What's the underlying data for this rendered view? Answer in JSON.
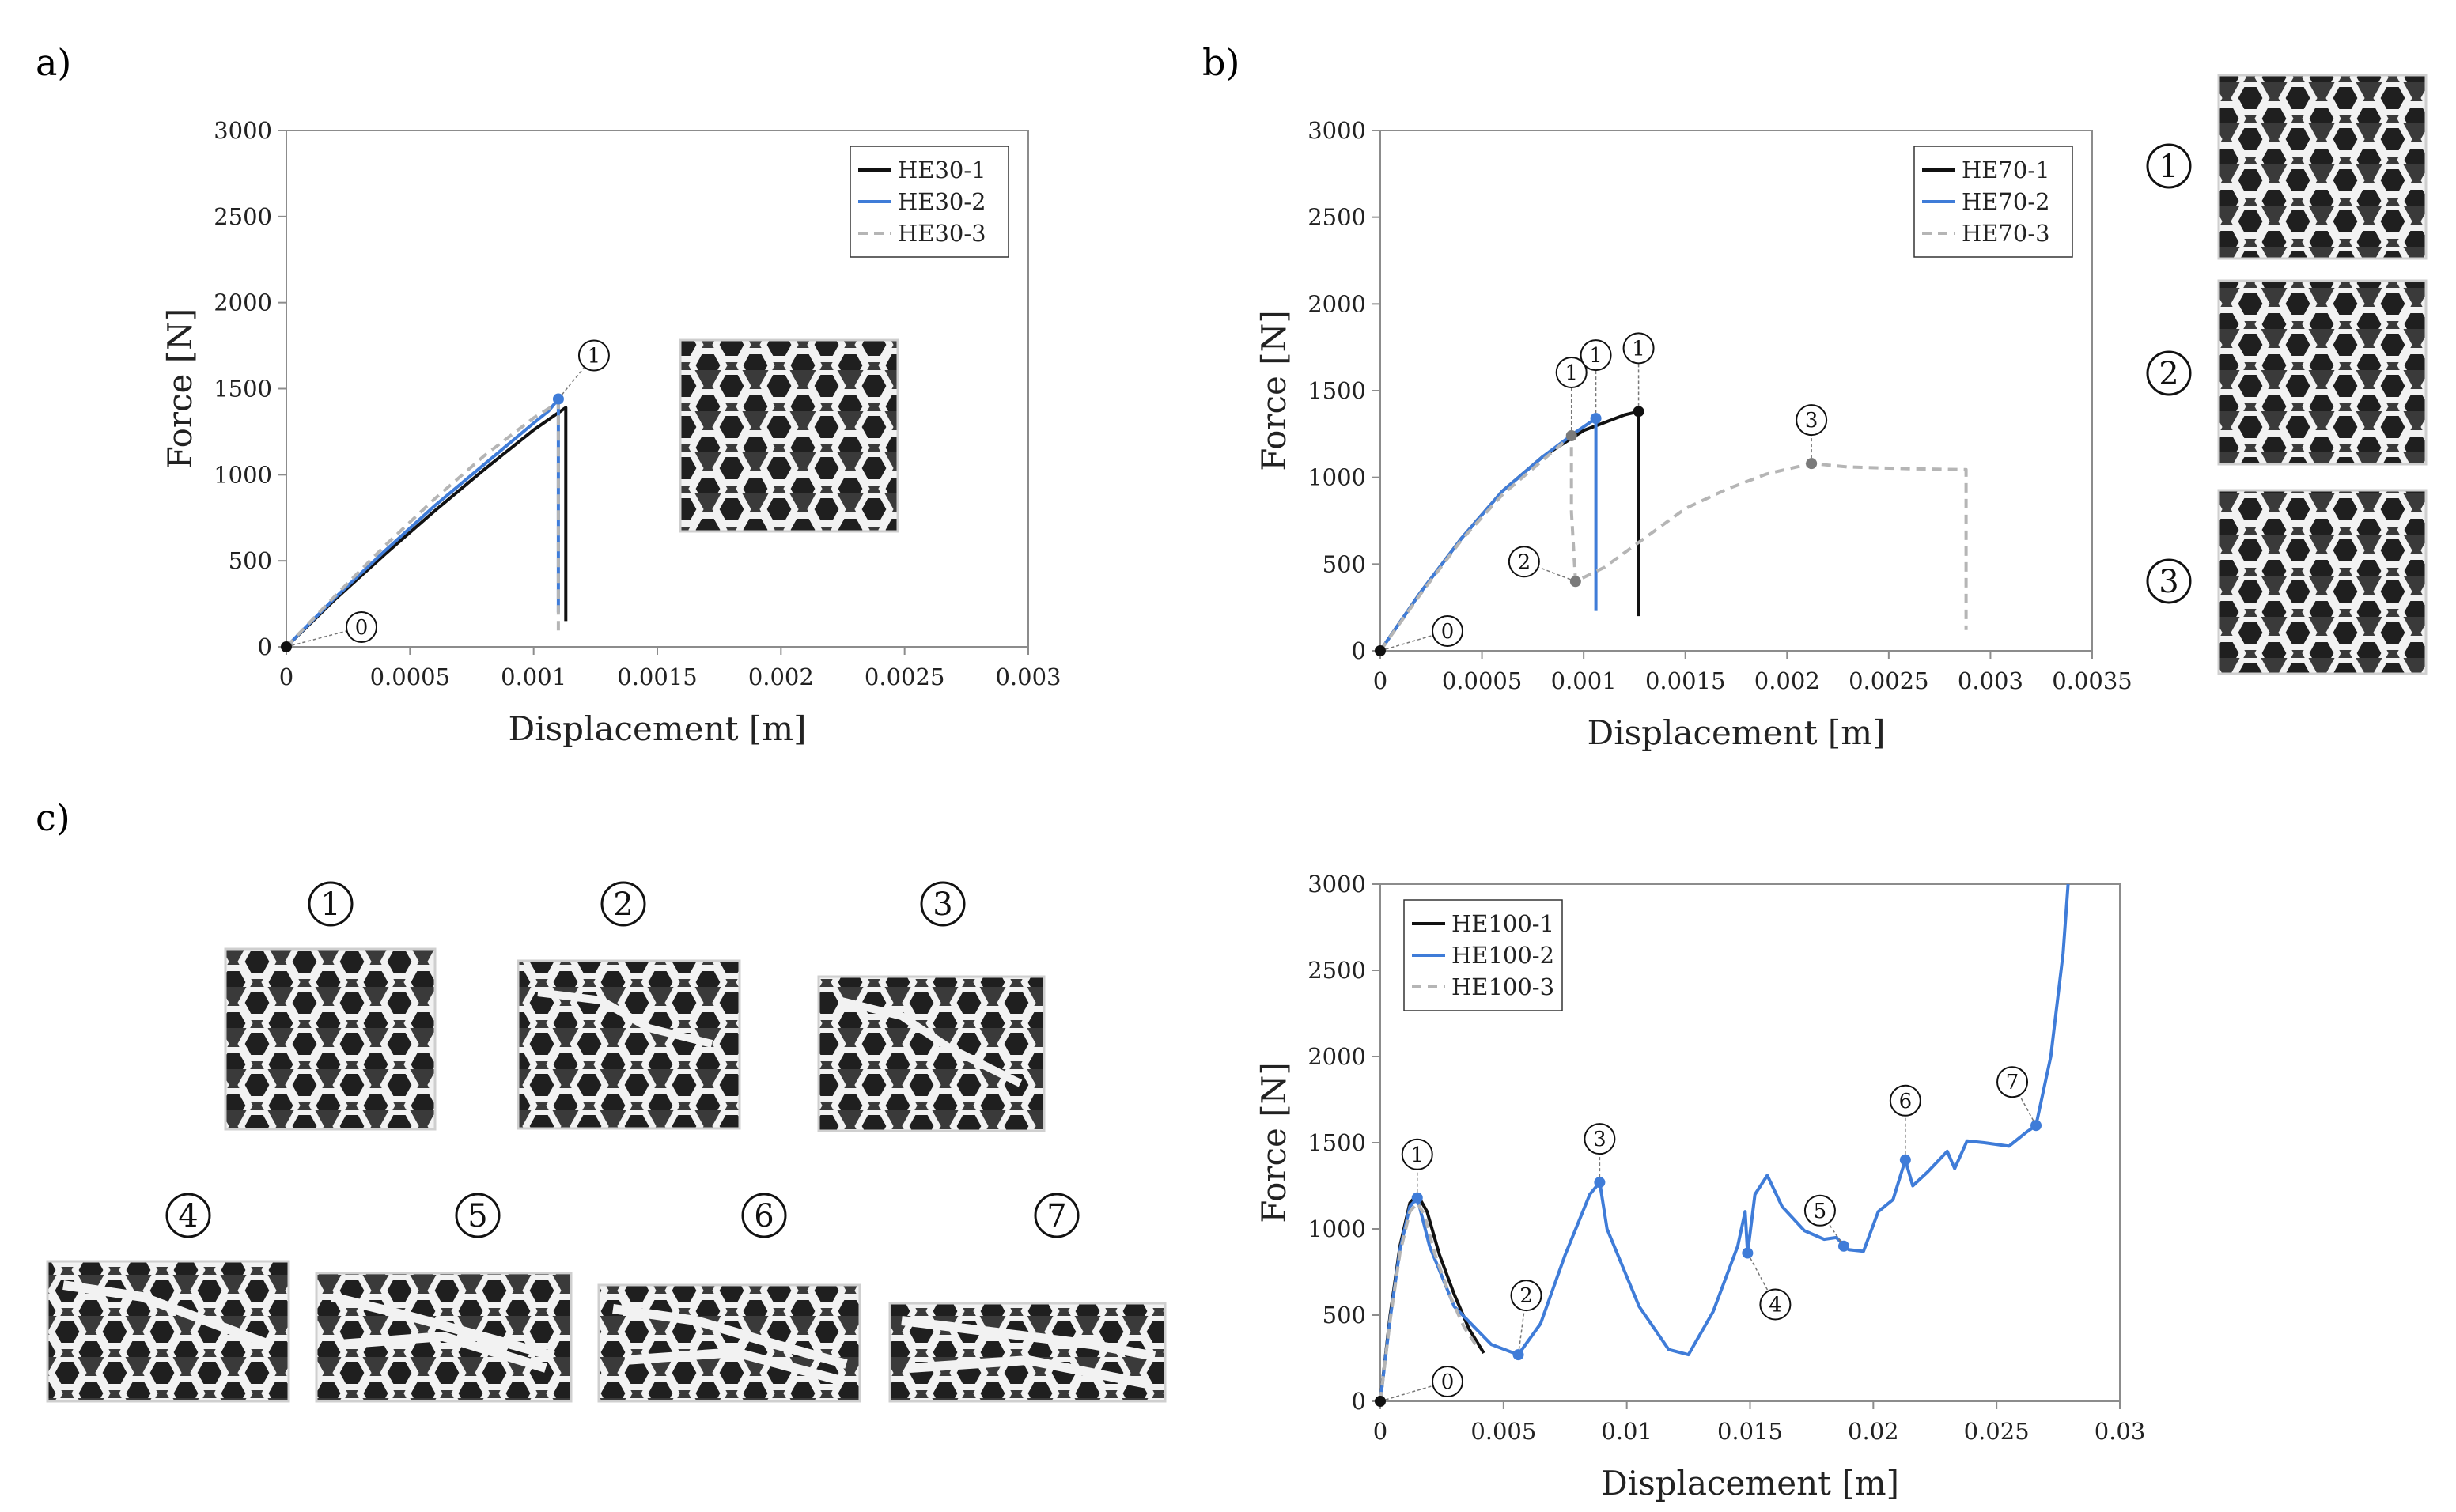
{
  "figure": {
    "panel_labels": [
      "a)",
      "b)",
      "c)"
    ],
    "panel_c_image_markers": [
      "1",
      "2",
      "3",
      "4",
      "5",
      "6",
      "7"
    ],
    "panel_b_image_markers": [
      "1",
      "2",
      "3"
    ]
  },
  "colors": {
    "series_black": "#111111",
    "series_blue": "#3F7CD8",
    "series_grey": "#B5B5B5",
    "marker_grey": "#7a7a7a",
    "photo_bg": "#3a3a3a",
    "lattice_white": "#f2f2f2"
  },
  "chart_data": [
    {
      "id": "a",
      "type": "line",
      "xlabel": "Displacement [m]",
      "ylabel": "Force [N]",
      "xlim": [
        0,
        0.003
      ],
      "ylim": [
        0,
        3000
      ],
      "xticks": [
        0,
        0.0005,
        0.001,
        0.0015,
        0.002,
        0.0025,
        0.003
      ],
      "xtick_labels": [
        "0",
        "0.0005",
        "0.001",
        "0.0015",
        "0.002",
        "0.0025",
        "0.003"
      ],
      "yticks": [
        0,
        500,
        1000,
        1500,
        2000,
        2500,
        3000
      ],
      "ytick_labels": [
        "0",
        "500",
        "1000",
        "1500",
        "2000",
        "2500",
        "3000"
      ],
      "legend_position": "top-right",
      "series": [
        {
          "name": "HE30-1",
          "style": "solid",
          "color": "#111111",
          "points": [
            [
              0,
              0
            ],
            [
              0.0002,
              280
            ],
            [
              0.0004,
              540
            ],
            [
              0.0006,
              790
            ],
            [
              0.0008,
              1030
            ],
            [
              0.001,
              1260
            ],
            [
              0.00113,
              1390
            ],
            [
              0.00113,
              1330
            ],
            [
              0.00113,
              150
            ]
          ]
        },
        {
          "name": "HE30-2",
          "style": "solid",
          "color": "#3F7CD8",
          "points": [
            [
              0,
              0
            ],
            [
              0.0002,
              290
            ],
            [
              0.0004,
              560
            ],
            [
              0.0006,
              820
            ],
            [
              0.0008,
              1060
            ],
            [
              0.001,
              1300
            ],
            [
              0.00106,
              1370
            ],
            [
              0.0011,
              1440
            ],
            [
              0.0011,
              1300
            ],
            [
              0.0011,
              200
            ]
          ]
        },
        {
          "name": "HE30-3",
          "style": "dashed",
          "color": "#B5B5B5",
          "points": [
            [
              0,
              0
            ],
            [
              0.0002,
              300
            ],
            [
              0.0004,
              590
            ],
            [
              0.0006,
              860
            ],
            [
              0.0008,
              1110
            ],
            [
              0.001,
              1330
            ],
            [
              0.0011,
              1420
            ],
            [
              0.0011,
              1320
            ],
            [
              0.0011,
              80
            ]
          ]
        }
      ],
      "markers": [
        {
          "label": "0",
          "x": 0,
          "y": 0,
          "color": "#111111"
        },
        {
          "label": "1",
          "x": 0.0011,
          "y": 1440,
          "color": "#3F7CD8"
        }
      ]
    },
    {
      "id": "b",
      "type": "line",
      "xlabel": "Displacement [m]",
      "ylabel": "Force [N]",
      "xlim": [
        0,
        0.0035
      ],
      "ylim": [
        0,
        3000
      ],
      "xticks": [
        0,
        0.0005,
        0.001,
        0.0015,
        0.002,
        0.0025,
        0.003,
        0.0035
      ],
      "xtick_labels": [
        "0",
        "0.0005",
        "0.001",
        "0.0015",
        "0.002",
        "0.0025",
        "0.003",
        "0.0035"
      ],
      "yticks": [
        0,
        500,
        1000,
        1500,
        2000,
        2500,
        3000
      ],
      "ytick_labels": [
        "0",
        "500",
        "1000",
        "1500",
        "2000",
        "2500",
        "3000"
      ],
      "legend_position": "top-right",
      "series": [
        {
          "name": "HE70-1",
          "style": "solid",
          "color": "#111111",
          "points": [
            [
              0,
              0
            ],
            [
              0.0002,
              340
            ],
            [
              0.0004,
              650
            ],
            [
              0.0006,
              920
            ],
            [
              0.0008,
              1120
            ],
            [
              0.001,
              1270
            ],
            [
              0.0012,
              1360
            ],
            [
              0.00127,
              1380
            ],
            [
              0.00127,
              1300
            ],
            [
              0.00127,
              200
            ]
          ]
        },
        {
          "name": "HE70-2",
          "style": "solid",
          "color": "#3F7CD8",
          "points": [
            [
              0,
              0
            ],
            [
              0.0002,
              340
            ],
            [
              0.0004,
              650
            ],
            [
              0.0006,
              920
            ],
            [
              0.0008,
              1120
            ],
            [
              0.00096,
              1260
            ],
            [
              0.00106,
              1340
            ],
            [
              0.00106,
              1260
            ],
            [
              0.00106,
              230
            ]
          ]
        },
        {
          "name": "HE70-3",
          "style": "dashed",
          "color": "#B5B5B5",
          "points": [
            [
              0,
              0
            ],
            [
              0.0002,
              330
            ],
            [
              0.0004,
              640
            ],
            [
              0.0006,
              900
            ],
            [
              0.0008,
              1100
            ],
            [
              0.00094,
              1240
            ],
            [
              0.00094,
              1150
            ],
            [
              0.00094,
              800
            ],
            [
              0.00096,
              400
            ],
            [
              0.0011,
              480
            ],
            [
              0.0013,
              650
            ],
            [
              0.0015,
              820
            ],
            [
              0.0017,
              930
            ],
            [
              0.0019,
              1020
            ],
            [
              0.00212,
              1080
            ],
            [
              0.0023,
              1060
            ],
            [
              0.0026,
              1050
            ],
            [
              0.00288,
              1045
            ],
            [
              0.00288,
              600
            ],
            [
              0.00288,
              120
            ]
          ]
        }
      ],
      "markers": [
        {
          "label": "0",
          "x": 0,
          "y": 0,
          "color": "#111111"
        },
        {
          "label": "1",
          "x": 0.00094,
          "y": 1240,
          "color": "#7a7a7a"
        },
        {
          "label": "1",
          "x": 0.00106,
          "y": 1340,
          "color": "#3F7CD8"
        },
        {
          "label": "1",
          "x": 0.00127,
          "y": 1380,
          "color": "#111111"
        },
        {
          "label": "2",
          "x": 0.00096,
          "y": 400,
          "color": "#7a7a7a"
        },
        {
          "label": "3",
          "x": 0.00212,
          "y": 1080,
          "color": "#7a7a7a"
        }
      ]
    },
    {
      "id": "c",
      "type": "line",
      "xlabel": "Displacement [m]",
      "ylabel": "Force [N]",
      "xlim": [
        0,
        0.03
      ],
      "ylim": [
        0,
        3000
      ],
      "xticks": [
        0,
        0.005,
        0.01,
        0.015,
        0.02,
        0.025,
        0.03
      ],
      "xtick_labels": [
        "0",
        "0.005",
        "0.01",
        "0.015",
        "0.02",
        "0.025",
        "0.03"
      ],
      "yticks": [
        0,
        500,
        1000,
        1500,
        2000,
        2500,
        3000
      ],
      "ytick_labels": [
        "0",
        "500",
        "1000",
        "1500",
        "2000",
        "2500",
        "3000"
      ],
      "legend_position": "top-left",
      "series": [
        {
          "name": "HE100-1",
          "style": "solid",
          "color": "#111111",
          "points": [
            [
              0,
              0
            ],
            [
              0.0004,
              500
            ],
            [
              0.0008,
              900
            ],
            [
              0.0012,
              1150
            ],
            [
              0.0015,
              1200
            ],
            [
              0.0019,
              1100
            ],
            [
              0.0024,
              850
            ],
            [
              0.003,
              620
            ],
            [
              0.0036,
              420
            ],
            [
              0.0042,
              280
            ]
          ]
        },
        {
          "name": "HE100-2",
          "style": "solid",
          "color": "#3F7CD8",
          "points": [
            [
              0,
              0
            ],
            [
              0.0004,
              480
            ],
            [
              0.0008,
              880
            ],
            [
              0.0012,
              1130
            ],
            [
              0.0015,
              1180
            ],
            [
              0.002,
              900
            ],
            [
              0.003,
              550
            ],
            [
              0.0045,
              330
            ],
            [
              0.0056,
              270
            ],
            [
              0.0065,
              450
            ],
            [
              0.0075,
              850
            ],
            [
              0.0085,
              1200
            ],
            [
              0.0089,
              1270
            ],
            [
              0.0092,
              1000
            ],
            [
              0.0105,
              550
            ],
            [
              0.0117,
              300
            ],
            [
              0.0125,
              270
            ],
            [
              0.0135,
              520
            ],
            [
              0.0145,
              900
            ],
            [
              0.0148,
              1100
            ],
            [
              0.0149,
              860
            ],
            [
              0.0152,
              1200
            ],
            [
              0.0157,
              1310
            ],
            [
              0.0163,
              1130
            ],
            [
              0.0172,
              990
            ],
            [
              0.018,
              940
            ],
            [
              0.0185,
              950
            ],
            [
              0.019,
              880
            ],
            [
              0.0196,
              870
            ],
            [
              0.0202,
              1100
            ],
            [
              0.0208,
              1170
            ],
            [
              0.0213,
              1400
            ],
            [
              0.0216,
              1250
            ],
            [
              0.0222,
              1330
            ],
            [
              0.023,
              1450
            ],
            [
              0.0233,
              1350
            ],
            [
              0.0238,
              1510
            ],
            [
              0.0245,
              1500
            ],
            [
              0.0255,
              1480
            ],
            [
              0.0262,
              1560
            ],
            [
              0.0266,
              1600
            ],
            [
              0.0272,
              2000
            ],
            [
              0.0277,
              2600
            ],
            [
              0.0279,
              3000
            ]
          ]
        },
        {
          "name": "HE100-3",
          "style": "dashed",
          "color": "#B5B5B5",
          "points": [
            [
              0,
              0
            ],
            [
              0.0004,
              470
            ],
            [
              0.0008,
              860
            ],
            [
              0.0012,
              1100
            ],
            [
              0.0015,
              1150
            ],
            [
              0.0018,
              1080
            ],
            [
              0.0022,
              860
            ],
            [
              0.0028,
              620
            ],
            [
              0.0034,
              430
            ],
            [
              0.004,
              300
            ]
          ]
        }
      ],
      "markers": [
        {
          "label": "0",
          "x": 0,
          "y": 0,
          "color": "#111111"
        },
        {
          "label": "1",
          "x": 0.0015,
          "y": 1180,
          "color": "#3F7CD8"
        },
        {
          "label": "2",
          "x": 0.0056,
          "y": 270,
          "color": "#3F7CD8"
        },
        {
          "label": "3",
          "x": 0.0089,
          "y": 1270,
          "color": "#3F7CD8"
        },
        {
          "label": "4",
          "x": 0.0149,
          "y": 860,
          "color": "#3F7CD8"
        },
        {
          "label": "5",
          "x": 0.0188,
          "y": 900,
          "color": "#3F7CD8"
        },
        {
          "label": "6",
          "x": 0.0213,
          "y": 1400,
          "color": "#3F7CD8"
        },
        {
          "label": "7",
          "x": 0.0266,
          "y": 1600,
          "color": "#3F7CD8"
        }
      ]
    }
  ]
}
